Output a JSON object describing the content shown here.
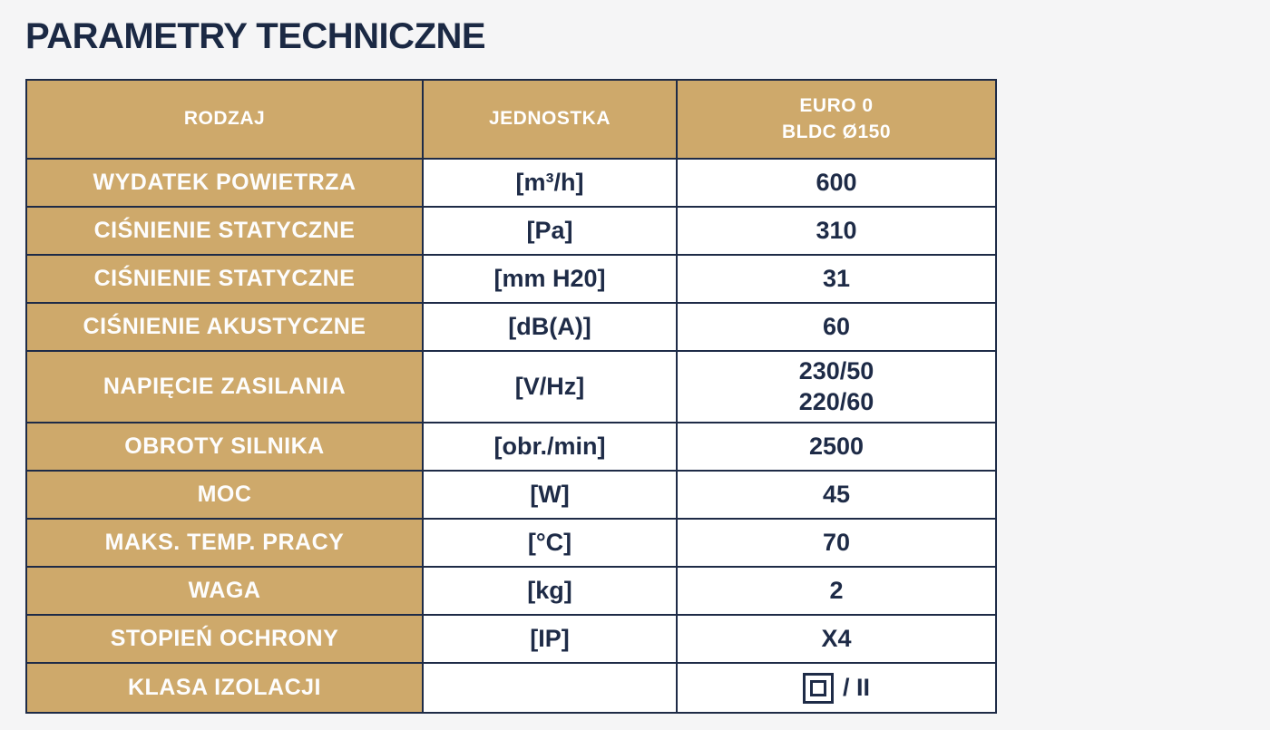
{
  "page": {
    "title": "PARAMETRY TECHNICZNE"
  },
  "colors": {
    "accent_tan": "#CEA96B",
    "navy_text_border": "#1E2B47",
    "cell_background": "#FFFFFF",
    "page_background": "#F5F5F6"
  },
  "table": {
    "columns": {
      "kind": "RODZAJ",
      "unit": "JEDNOSTKA",
      "model": "EURO 0\nBLDC Ø150"
    },
    "rows": [
      {
        "label": "WYDATEK POWIETRZA",
        "unit": "[m³/h]",
        "value": "600"
      },
      {
        "label": "CIŚNIENIE STATYCZNE",
        "unit": "[Pa]",
        "value": "310"
      },
      {
        "label": "CIŚNIENIE STATYCZNE",
        "unit": "[mm H20]",
        "value": "31"
      },
      {
        "label": "CIŚNIENIE AKUSTYCZNE",
        "unit": "[dB(A)]",
        "value": "60"
      },
      {
        "label": "NAPIĘCIE ZASILANIA",
        "unit": "[V/Hz]",
        "value": "230/50\n220/60"
      },
      {
        "label": "OBROTY SILNIKA",
        "unit": "[obr./min]",
        "value": "2500"
      },
      {
        "label": "MOC",
        "unit": "[W]",
        "value": "45"
      },
      {
        "label": "MAKS. TEMP. PRACY",
        "unit": "[°C]",
        "value": "70"
      },
      {
        "label": "WAGA",
        "unit": "[kg]",
        "value": "2"
      },
      {
        "label": "STOPIEŃ OCHRONY",
        "unit": "[IP]",
        "value": "X4"
      },
      {
        "label": "KLASA IZOLACJI",
        "unit": "",
        "value": "/ II",
        "icon": "class-ii-insulation-icon"
      }
    ]
  }
}
